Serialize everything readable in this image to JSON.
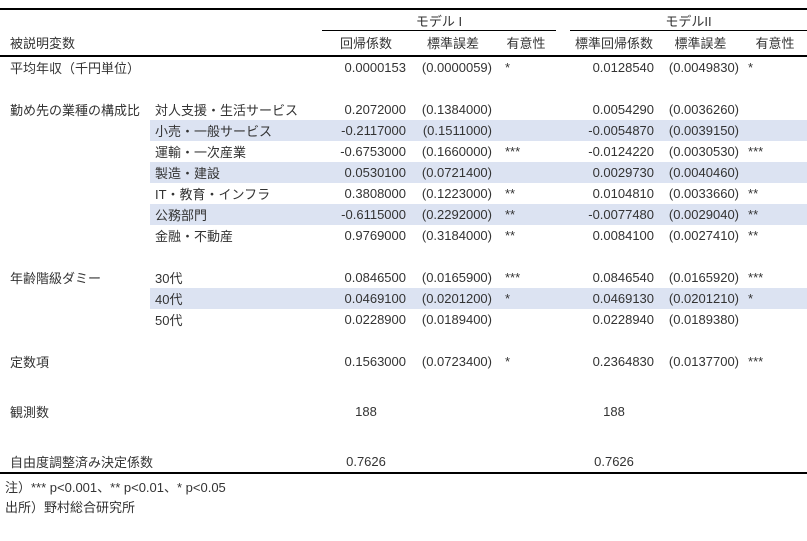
{
  "table": {
    "dep_var_header": "被説明変数",
    "models": [
      {
        "label": "モデル I",
        "columns": [
          "回帰係数",
          "標準誤差",
          "有意性"
        ]
      },
      {
        "label": "モデルII",
        "columns": [
          "標準回帰係数",
          "標準誤差",
          "有意性"
        ]
      }
    ],
    "rows": [
      {
        "type": "data",
        "wide": "平均年収（千円単位）",
        "m1": [
          "0.0000153",
          "(0.0000059)",
          "*"
        ],
        "m2": [
          "0.0128540",
          "(0.0049830)",
          "*"
        ]
      },
      {
        "type": "spacer"
      },
      {
        "type": "data",
        "group": "勤め先の業種の構成比",
        "label": "対人支援・生活サービス",
        "m1": [
          "0.2072000",
          "(0.1384000)",
          ""
        ],
        "m2": [
          "0.0054290",
          "(0.0036260)",
          ""
        ]
      },
      {
        "type": "data",
        "label": "小売・一般サービス",
        "hl": true,
        "m1": [
          "-0.2117000",
          "(0.1511000)",
          ""
        ],
        "m2": [
          "-0.0054870",
          "(0.0039150)",
          ""
        ]
      },
      {
        "type": "data",
        "label": "運輸・一次産業",
        "m1": [
          "-0.6753000",
          "(0.1660000)",
          "***"
        ],
        "m2": [
          "-0.0124220",
          "(0.0030530)",
          "***"
        ]
      },
      {
        "type": "data",
        "label": "製造・建設",
        "hl": true,
        "m1": [
          "0.0530100",
          "(0.0721400)",
          ""
        ],
        "m2": [
          "0.0029730",
          "(0.0040460)",
          ""
        ]
      },
      {
        "type": "data",
        "label": "IT・教育・インフラ",
        "m1": [
          "0.3808000",
          "(0.1223000)",
          "**"
        ],
        "m2": [
          "0.0104810",
          "(0.0033660)",
          "**"
        ]
      },
      {
        "type": "data",
        "label": "公務部門",
        "hl": true,
        "m1": [
          "-0.6115000",
          "(0.2292000)",
          "**"
        ],
        "m2": [
          "-0.0077480",
          "(0.0029040)",
          "**"
        ]
      },
      {
        "type": "data",
        "label": "金融・不動産",
        "m1": [
          "0.9769000",
          "(0.3184000)",
          "**"
        ],
        "m2": [
          "0.0084100",
          "(0.0027410)",
          "**"
        ]
      },
      {
        "type": "spacer"
      },
      {
        "type": "data",
        "group": "年齢階級ダミー",
        "label": "30代",
        "m1": [
          "0.0846500",
          "(0.0165900)",
          "***"
        ],
        "m2": [
          "0.0846540",
          "(0.0165920)",
          "***"
        ]
      },
      {
        "type": "data",
        "label": "40代",
        "hl": true,
        "m1": [
          "0.0469100",
          "(0.0201200)",
          "*"
        ],
        "m2": [
          "0.0469130",
          "(0.0201210)",
          "*"
        ]
      },
      {
        "type": "data",
        "label": "50代",
        "m1": [
          "0.0228900",
          "(0.0189400)",
          ""
        ],
        "m2": [
          "0.0228940",
          "(0.0189380)",
          ""
        ]
      },
      {
        "type": "spacer"
      },
      {
        "type": "data",
        "wide": "定数項",
        "m1": [
          "0.1563000",
          "(0.0723400)",
          "*"
        ],
        "m2": [
          "0.2364830",
          "(0.0137700)",
          "***"
        ]
      },
      {
        "type": "spacer",
        "tall": true
      },
      {
        "type": "summary",
        "wide": "観測数",
        "m1": "188",
        "m2": "188"
      },
      {
        "type": "spacer",
        "tall": true
      },
      {
        "type": "summary",
        "wide": "自由度調整済み決定係数",
        "m1": "0.7626",
        "m2": "0.7626",
        "last": true
      }
    ],
    "notes": [
      "注）*** p<0.001、** p<0.01、* p<0.05",
      "出所）野村総合研究所"
    ]
  },
  "colors": {
    "highlight": "#dce3f2",
    "text": "#333333",
    "rule": "#000000"
  }
}
